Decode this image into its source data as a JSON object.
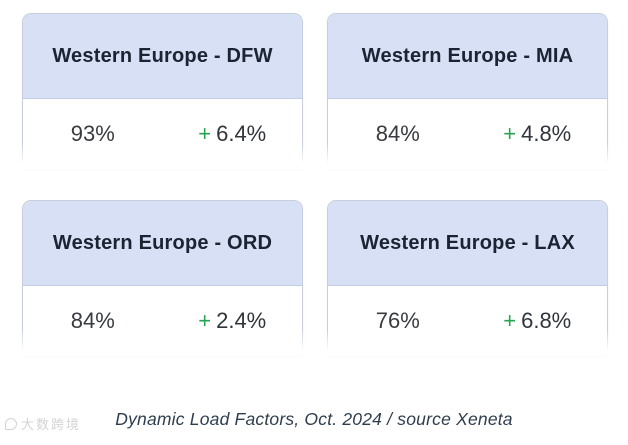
{
  "cards": [
    {
      "title": "Western Europe - DFW",
      "load_factor": "93%",
      "change_sign": "+",
      "change_value": "6.4%"
    },
    {
      "title": "Western Europe - MIA",
      "load_factor": "84%",
      "change_sign": "+",
      "change_value": "4.8%"
    },
    {
      "title": "Western Europe - ORD",
      "load_factor": "84%",
      "change_sign": "+",
      "change_value": "2.4%"
    },
    {
      "title": "Western Europe - LAX",
      "load_factor": "76%",
      "change_sign": "+",
      "change_value": "6.8%"
    }
  ],
  "caption": {
    "text": "Dynamic Load Factors, Oct. 2024 / source Xeneta"
  },
  "watermark": {
    "text": "大数跨境"
  },
  "colors": {
    "card_header_bg": "#d7e0f5",
    "card_border": "#c8cedb",
    "header_text": "#1c2433",
    "value_text": "#383b40",
    "positive_green": "#27a351",
    "caption_text": "#2e3e4e"
  }
}
